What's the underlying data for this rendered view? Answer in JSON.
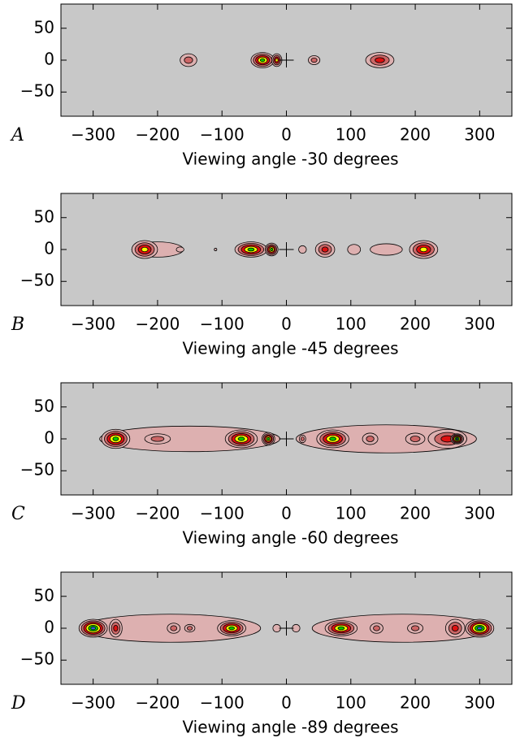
{
  "chart_data": [
    {
      "type": "contour",
      "panel_label": "A",
      "xlabel": "Viewing angle -30 degrees",
      "xlim": [
        -350,
        350
      ],
      "ylim": [
        -88,
        88
      ],
      "xticks": [
        {
          "value": -300,
          "label": "−300"
        },
        {
          "value": -200,
          "label": "−200"
        },
        {
          "value": -100,
          "label": "−100"
        },
        0,
        100,
        200,
        300
      ],
      "yticks": [
        50,
        0,
        {
          "value": -50,
          "label": "−50"
        }
      ],
      "background": "#c8c8c8",
      "level_colors": [
        "#ddb0b0",
        "#cc6666",
        "#dd1111",
        "#ffff00",
        "#00cc00",
        "#3366cc"
      ],
      "origin_marker": {
        "x": 0,
        "y": 0
      },
      "blobs": [
        {
          "x": -152,
          "y": 0,
          "w": 13,
          "h": 10,
          "level": 2
        },
        {
          "x": -37,
          "y": 0,
          "w": 18,
          "h": 12,
          "level": 5
        },
        {
          "x": -15,
          "y": 0,
          "w": 8,
          "h": 10,
          "level": 4
        },
        {
          "x": 43,
          "y": 0,
          "w": 9,
          "h": 7,
          "level": 2
        },
        {
          "x": 145,
          "y": 0,
          "w": 22,
          "h": 12,
          "level": 3
        }
      ]
    },
    {
      "type": "contour",
      "panel_label": "B",
      "xlabel": "Viewing angle -45 degrees",
      "xlim": [
        -350,
        350
      ],
      "ylim": [
        -88,
        88
      ],
      "xticks": [
        {
          "value": -300,
          "label": "−300"
        },
        {
          "value": -200,
          "label": "−200"
        },
        {
          "value": -100,
          "label": "−100"
        },
        0,
        100,
        200,
        300
      ],
      "yticks": [
        50,
        0,
        {
          "value": -50,
          "label": "−50"
        }
      ],
      "background": "#c8c8c8",
      "level_colors": [
        "#ddb0b0",
        "#cc6666",
        "#dd1111",
        "#ffff00",
        "#00cc00",
        "#3366cc"
      ],
      "origin_marker": {
        "x": 0,
        "y": 0
      },
      "blobs": [
        {
          "x": -200,
          "y": 0,
          "w": 40,
          "h": 12,
          "level": 1
        },
        {
          "x": -220,
          "y": 0,
          "w": 20,
          "h": 14,
          "level": 4
        },
        {
          "x": -165,
          "y": 0,
          "w": 6,
          "h": 4,
          "level": 1
        },
        {
          "x": -110,
          "y": 0,
          "w": 2,
          "h": 2,
          "level": 1
        },
        {
          "x": -55,
          "y": 0,
          "w": 25,
          "h": 12,
          "level": 5
        },
        {
          "x": -23,
          "y": 0,
          "w": 10,
          "h": 10,
          "level": 5
        },
        {
          "x": 25,
          "y": 0,
          "w": 6,
          "h": 6,
          "level": 1
        },
        {
          "x": 60,
          "y": 0,
          "w": 15,
          "h": 12,
          "level": 3
        },
        {
          "x": 105,
          "y": 0,
          "w": 10,
          "h": 8,
          "level": 1
        },
        {
          "x": 155,
          "y": 0,
          "w": 25,
          "h": 9,
          "level": 1
        },
        {
          "x": 213,
          "y": 0,
          "w": 22,
          "h": 14,
          "level": 4
        }
      ]
    },
    {
      "type": "contour",
      "panel_label": "C",
      "xlabel": "Viewing angle -60 degrees",
      "xlim": [
        -350,
        350
      ],
      "ylim": [
        -88,
        88
      ],
      "xticks": [
        {
          "value": -300,
          "label": "−300"
        },
        {
          "value": -200,
          "label": "−200"
        },
        {
          "value": -100,
          "label": "−100"
        },
        0,
        100,
        200,
        300
      ],
      "yticks": [
        50,
        0,
        {
          "value": -50,
          "label": "−50"
        }
      ],
      "background": "#c8c8c8",
      "level_colors": [
        "#ddb0b0",
        "#cc6666",
        "#dd1111",
        "#ffff00",
        "#00cc00",
        "#3366cc"
      ],
      "origin_marker": {
        "x": 0,
        "y": 0
      },
      "blobs": [
        {
          "x": -150,
          "y": 0,
          "w": 140,
          "h": 20,
          "level": 1
        },
        {
          "x": 155,
          "y": 0,
          "w": 140,
          "h": 22,
          "level": 1
        },
        {
          "x": -265,
          "y": 0,
          "w": 22,
          "h": 15,
          "level": 5
        },
        {
          "x": -200,
          "y": 0,
          "w": 20,
          "h": 8,
          "level": 2
        },
        {
          "x": -70,
          "y": 0,
          "w": 25,
          "h": 14,
          "level": 5
        },
        {
          "x": -28,
          "y": 0,
          "w": 10,
          "h": 10,
          "level": 5
        },
        {
          "x": 25,
          "y": 0,
          "w": 5,
          "h": 6,
          "level": 2
        },
        {
          "x": 72,
          "y": 0,
          "w": 25,
          "h": 14,
          "level": 5
        },
        {
          "x": 130,
          "y": 0,
          "w": 12,
          "h": 9,
          "level": 2
        },
        {
          "x": 200,
          "y": 0,
          "w": 15,
          "h": 9,
          "level": 2
        },
        {
          "x": 250,
          "y": 0,
          "w": 30,
          "h": 15,
          "level": 3
        },
        {
          "x": 265,
          "y": 0,
          "w": 10,
          "h": 8,
          "level": 6
        }
      ]
    },
    {
      "type": "contour",
      "panel_label": "D",
      "xlabel": "Viewing angle -89 degrees",
      "xlim": [
        -350,
        350
      ],
      "ylim": [
        -88,
        88
      ],
      "xticks": [
        {
          "value": -300,
          "label": "−300"
        },
        {
          "value": -200,
          "label": "−200"
        },
        {
          "value": -100,
          "label": "−100"
        },
        0,
        100,
        200,
        300
      ],
      "yticks": [
        50,
        0,
        {
          "value": -50,
          "label": "−50"
        }
      ],
      "background": "#c8c8c8",
      "level_colors": [
        "#ddb0b0",
        "#cc6666",
        "#dd1111",
        "#ffff00",
        "#00cc00",
        "#3366cc"
      ],
      "origin_marker": {
        "x": 0,
        "y": 0
      },
      "blobs": [
        {
          "x": -180,
          "y": 0,
          "w": 140,
          "h": 22,
          "level": 1
        },
        {
          "x": 180,
          "y": 0,
          "w": 140,
          "h": 22,
          "level": 1
        },
        {
          "x": -300,
          "y": 0,
          "w": 22,
          "h": 14,
          "level": 6
        },
        {
          "x": -265,
          "y": 0,
          "w": 10,
          "h": 14,
          "level": 3
        },
        {
          "x": -175,
          "y": 0,
          "w": 10,
          "h": 8,
          "level": 2
        },
        {
          "x": -150,
          "y": 0,
          "w": 8,
          "h": 6,
          "level": 2
        },
        {
          "x": -85,
          "y": 0,
          "w": 22,
          "h": 12,
          "level": 5
        },
        {
          "x": -15,
          "y": 0,
          "w": 6,
          "h": 6,
          "level": 1
        },
        {
          "x": 15,
          "y": 0,
          "w": 6,
          "h": 6,
          "level": 1
        },
        {
          "x": 85,
          "y": 0,
          "w": 25,
          "h": 12,
          "level": 5
        },
        {
          "x": 140,
          "y": 0,
          "w": 10,
          "h": 8,
          "level": 2
        },
        {
          "x": 200,
          "y": 0,
          "w": 12,
          "h": 8,
          "level": 2
        },
        {
          "x": 262,
          "y": 0,
          "w": 15,
          "h": 14,
          "level": 3
        },
        {
          "x": 300,
          "y": 0,
          "w": 22,
          "h": 14,
          "level": 6
        }
      ]
    }
  ]
}
